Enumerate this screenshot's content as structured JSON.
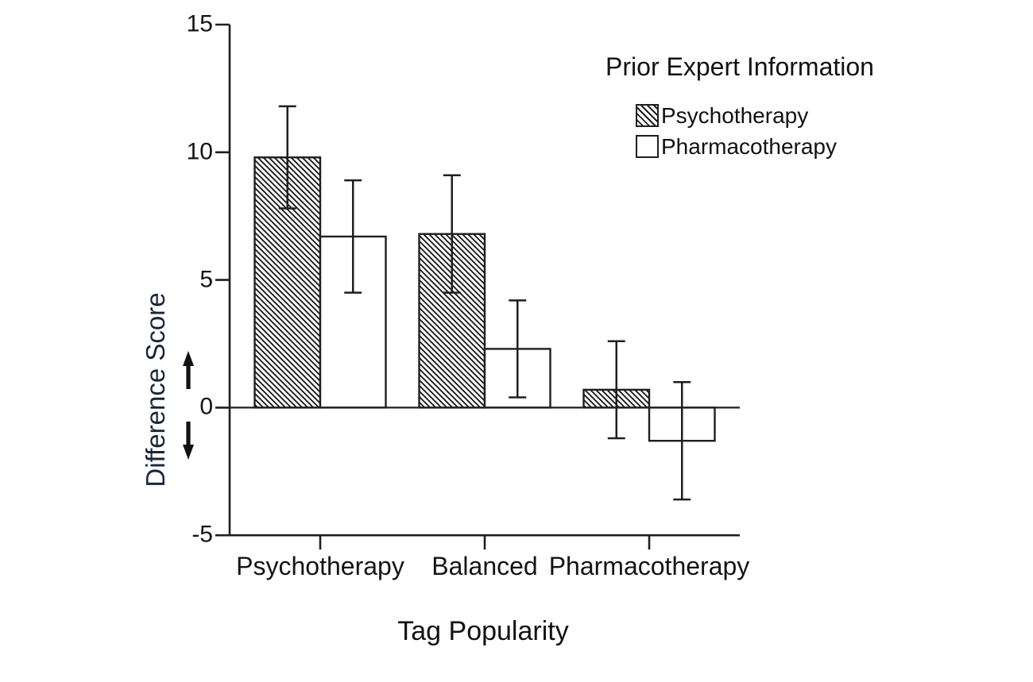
{
  "chart_data": {
    "type": "bar",
    "title": "",
    "xlabel": "Tag Popularity",
    "ylabel": "Difference Score",
    "categories": [
      "Psychotherapy",
      "Balanced",
      "Pharmacotherapy"
    ],
    "series": [
      {
        "name": "Psychotherapy",
        "style": "hatched",
        "values": [
          9.8,
          6.8,
          0.7
        ],
        "errors": [
          2.0,
          2.3,
          1.9
        ]
      },
      {
        "name": "Pharmacotherapy",
        "style": "open",
        "values": [
          6.7,
          2.3,
          -1.3
        ],
        "errors": [
          2.2,
          1.9,
          2.3
        ]
      }
    ],
    "legend": {
      "title": "Prior Expert Information",
      "position": "top-right",
      "items": [
        "Psychotherapy",
        "Pharmacotherapy"
      ]
    },
    "yticks": [
      15,
      10,
      5,
      0,
      -5
    ],
    "ylim": [
      -5,
      15
    ],
    "grid": false,
    "zero_line": true,
    "error_bars": true,
    "annotations": {
      "up_arrow_icon": "increase-direction",
      "down_arrow_icon": "decrease-direction"
    }
  },
  "colors": {
    "ink": "#1f1f1f",
    "text": "#141414",
    "ylabel_text": "#1a2537",
    "background": "#ffffff",
    "bar_open_fill": "#ffffff"
  }
}
